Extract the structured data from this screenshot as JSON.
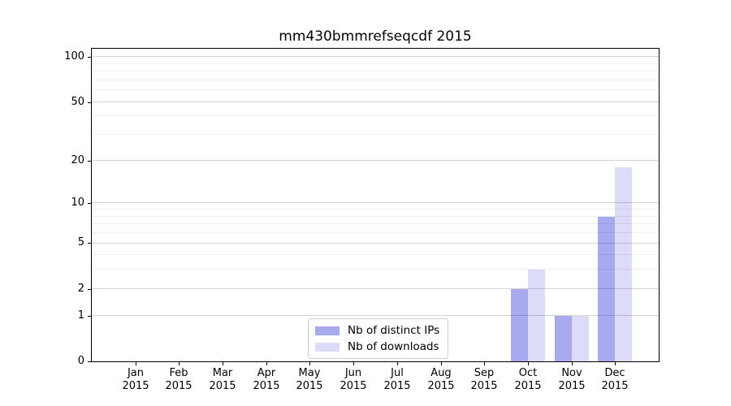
{
  "title": "mm430bmmrefseqcdf 2015",
  "chart_data": {
    "type": "bar",
    "title": "mm430bmmrefseqcdf 2015",
    "x_categories": [
      "Jan",
      "Feb",
      "Mar",
      "Apr",
      "May",
      "Jun",
      "Jul",
      "Aug",
      "Sep",
      "Oct",
      "Nov",
      "Dec"
    ],
    "x_year": "2015",
    "series": [
      {
        "name": "Nb of distinct IPs",
        "color": "#a9a9f0",
        "values": [
          0,
          0,
          0,
          0,
          0,
          0,
          0,
          0,
          0,
          2,
          1,
          8
        ]
      },
      {
        "name": "Nb of downloads",
        "color": "#dcdcf8",
        "values": [
          0,
          0,
          0,
          0,
          0,
          0,
          0,
          0,
          0,
          3,
          1,
          18
        ]
      }
    ],
    "y_scale": "log10(value+1)",
    "y_tick_values": [
      100,
      50,
      20,
      10,
      5,
      2,
      1,
      0
    ],
    "y_minor_gridline_values": [
      3,
      4,
      6,
      7,
      8,
      9,
      30,
      40,
      60,
      70,
      80,
      90
    ],
    "ylim": [
      0,
      115
    ],
    "grid": true,
    "legend_position": "lower center",
    "colors": {
      "spine": "#000000",
      "background": "#ffffff",
      "major_grid": "#d4d4d4",
      "minor_grid": "#eeeeee",
      "legend_border": "#cccccc"
    }
  }
}
